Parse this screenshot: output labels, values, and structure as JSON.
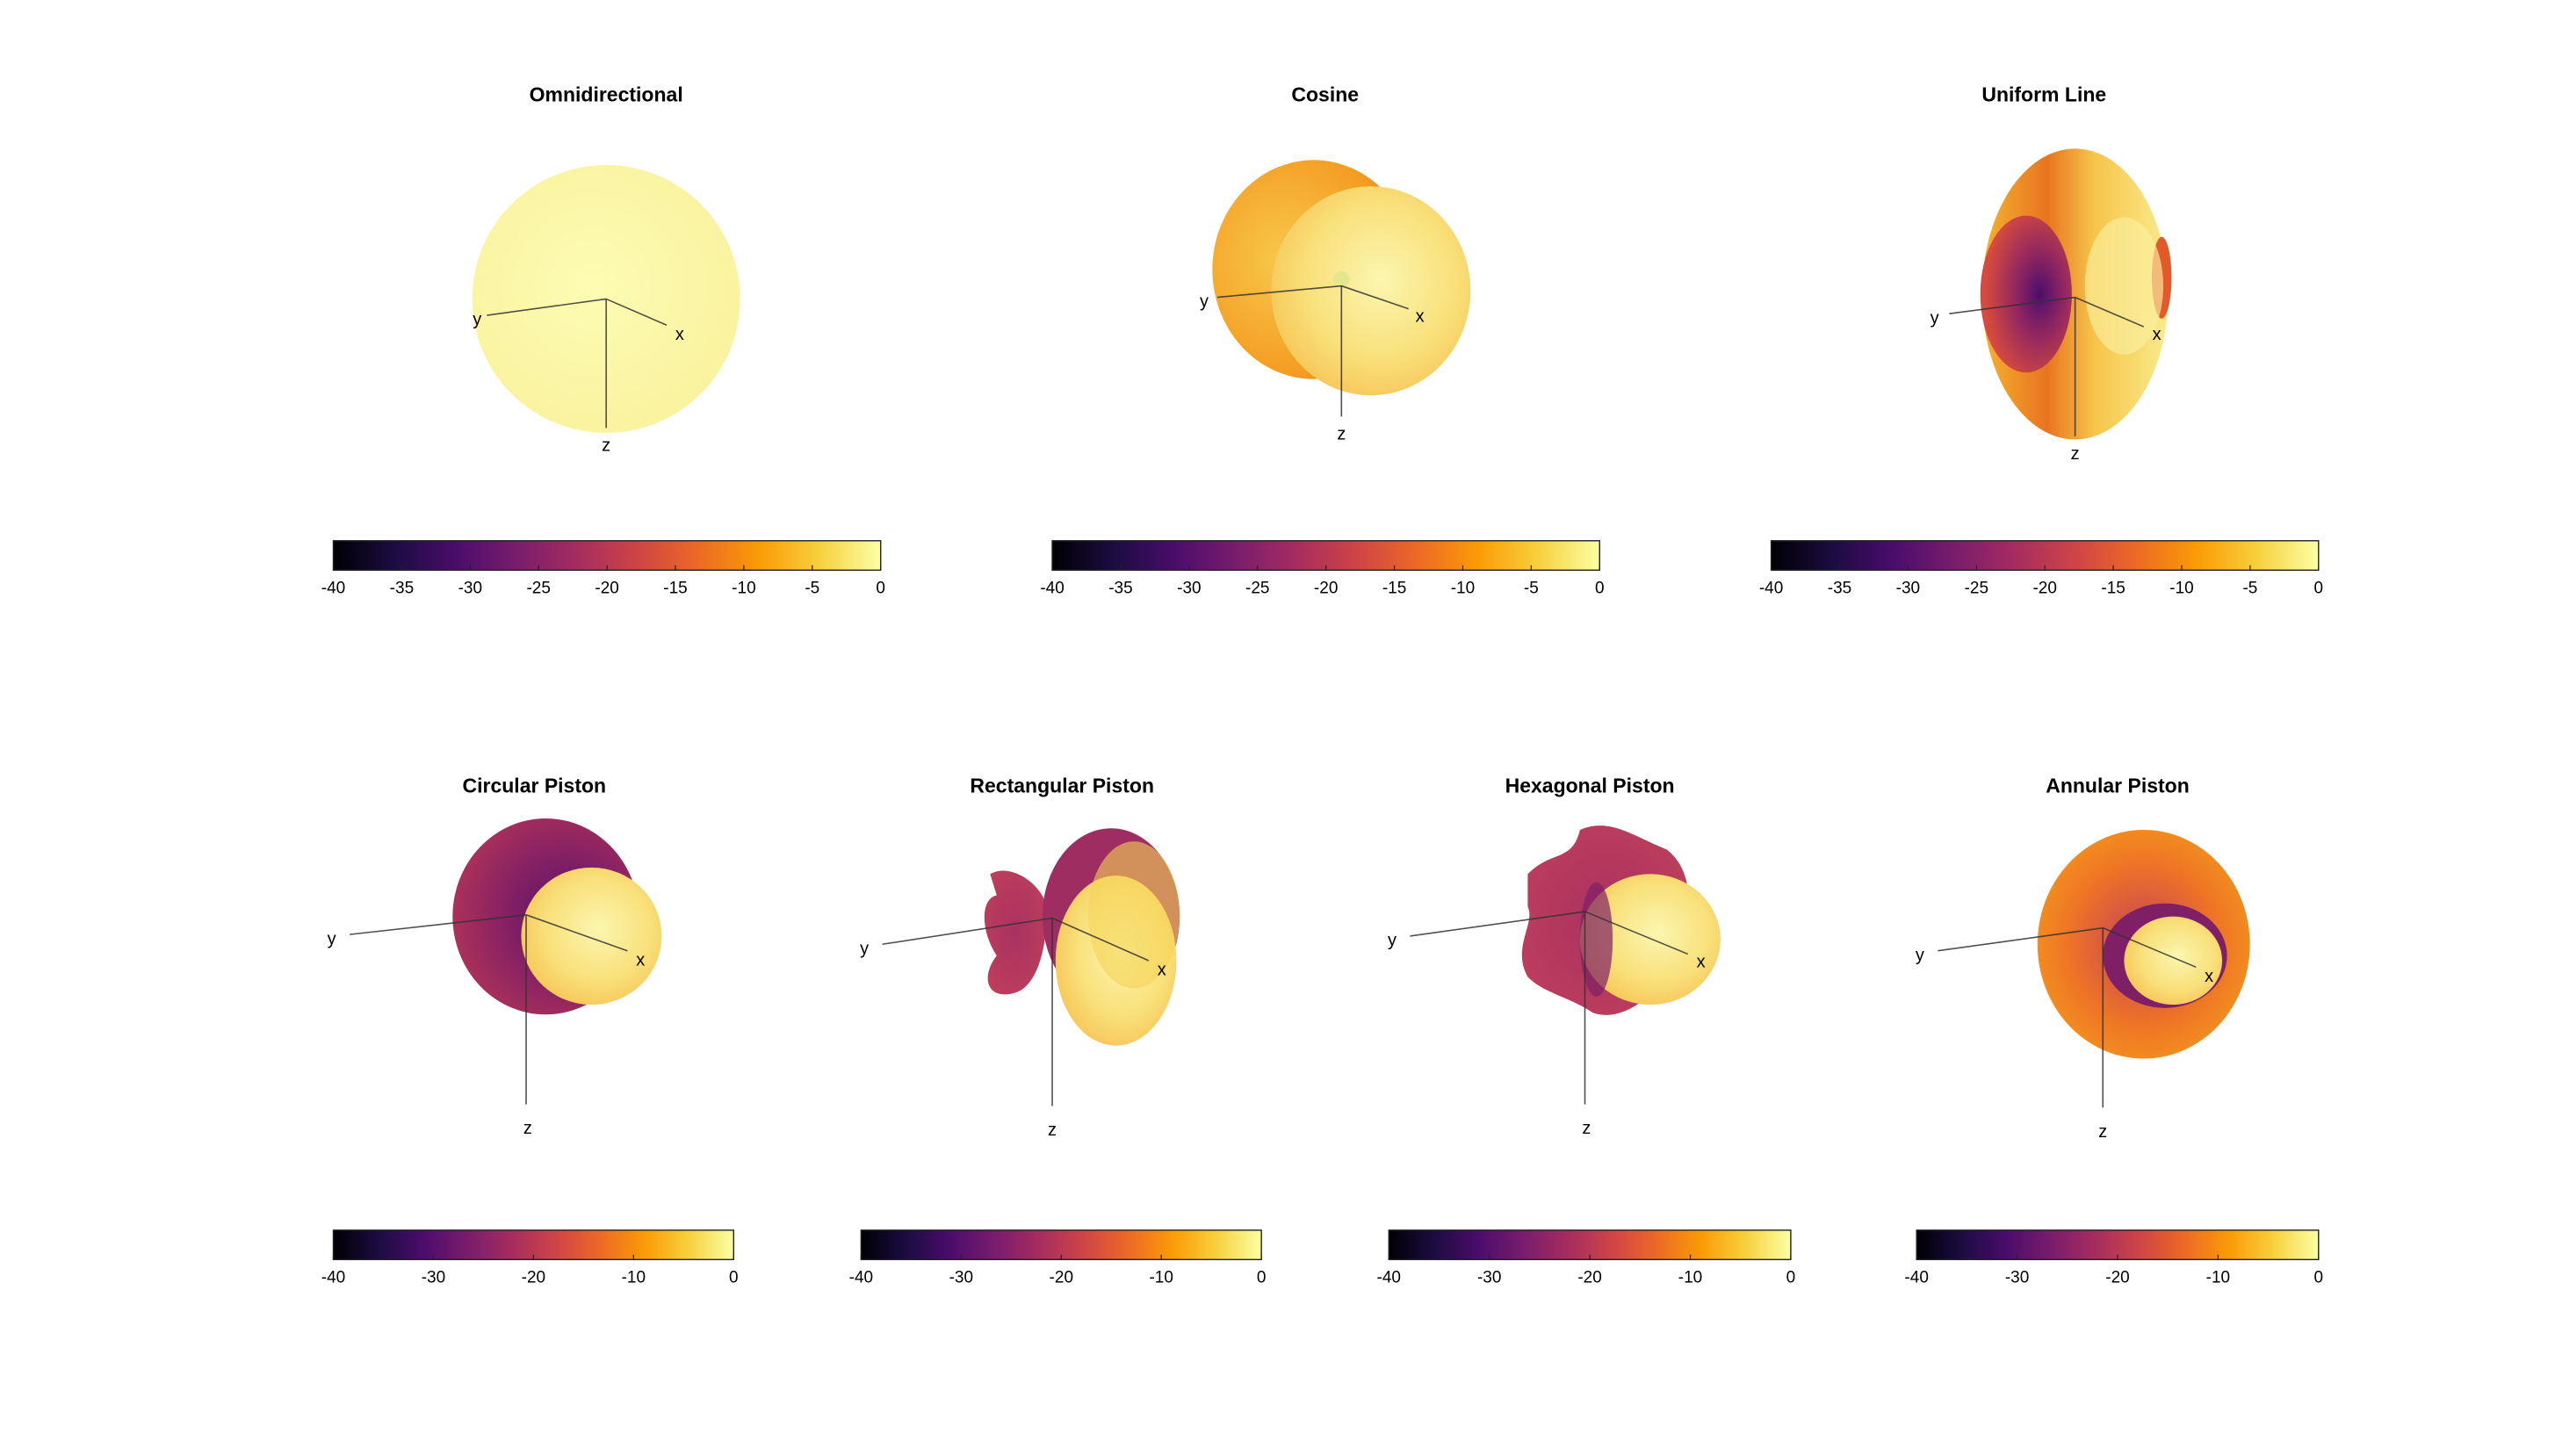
{
  "colormap": {
    "name": "inferno",
    "stops": [
      "#000004",
      "#1b0c41",
      "#4a0c6b",
      "#781c6d",
      "#a52c60",
      "#cf4446",
      "#ed6925",
      "#fb9b06",
      "#f7d13d",
      "#fcffa4"
    ]
  },
  "panels": [
    {
      "title": "Omnidirectional",
      "shape": "omni",
      "ticks": [
        "-40",
        "-35",
        "-30",
        "-25",
        "-20",
        "-15",
        "-10",
        "-5",
        "0"
      ]
    },
    {
      "title": "Cosine",
      "shape": "cosine",
      "ticks": [
        "-40",
        "-35",
        "-30",
        "-25",
        "-20",
        "-15",
        "-10",
        "-5",
        "0"
      ]
    },
    {
      "title": "Uniform Line",
      "shape": "line",
      "ticks": [
        "-40",
        "-35",
        "-30",
        "-25",
        "-20",
        "-15",
        "-10",
        "-5",
        "0"
      ]
    },
    {
      "title": "Circular Piston",
      "shape": "circular",
      "ticks": [
        "-40",
        "-30",
        "-20",
        "-10",
        "0"
      ]
    },
    {
      "title": "Rectangular Piston",
      "shape": "rect",
      "ticks": [
        "-40",
        "-30",
        "-20",
        "-10",
        "0"
      ]
    },
    {
      "title": "Hexagonal Piston",
      "shape": "hex",
      "ticks": [
        "-40",
        "-30",
        "-20",
        "-10",
        "0"
      ]
    },
    {
      "title": "Annular Piston",
      "shape": "annular",
      "ticks": [
        "-40",
        "-30",
        "-20",
        "-10",
        "0"
      ]
    }
  ],
  "axis_labels": {
    "x": "x",
    "y": "y",
    "z": "z"
  }
}
